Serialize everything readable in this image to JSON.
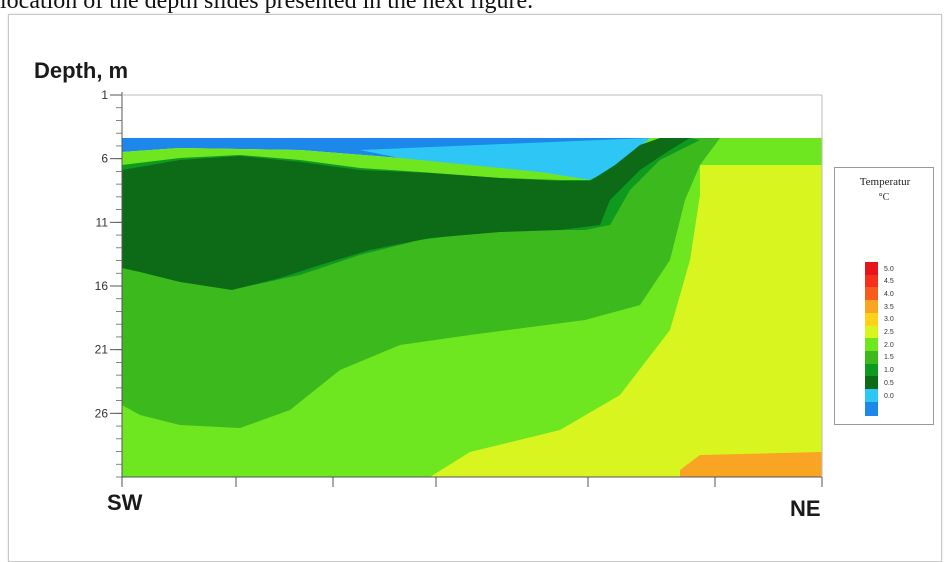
{
  "page": {
    "top_text": "location of the depth slides presented in the next figure."
  },
  "chart_data": {
    "type": "heatmap",
    "title": "",
    "ylabel": "Depth, m",
    "xlabel_left": "SW",
    "xlabel_right": "NE",
    "y_ticks": [
      "1",
      "6",
      "11",
      "16",
      "21",
      "26"
    ],
    "ylim": [
      1,
      31
    ],
    "legend": {
      "title": "Temperatur",
      "unit": "°C",
      "levels": [
        {
          "value": "5.0",
          "color": "#e8141b"
        },
        {
          "value": "4.5",
          "color": "#f7301e"
        },
        {
          "value": "4.0",
          "color": "#f95b1e"
        },
        {
          "value": "3.5",
          "color": "#f9a423"
        },
        {
          "value": "3.0",
          "color": "#ffd21a"
        },
        {
          "value": "2.5",
          "color": "#d9f51f"
        },
        {
          "value": "2.0",
          "color": "#6ee620"
        },
        {
          "value": "1.5",
          "color": "#3cb91d"
        },
        {
          "value": "1.0",
          "color": "#0e9a1e"
        },
        {
          "value": "0.5",
          "color": "#0d6b17"
        },
        {
          "value": "0.0",
          "color": "#2ec7f5"
        },
        {
          "value": "",
          "color": "#1e88ea"
        }
      ]
    }
  }
}
